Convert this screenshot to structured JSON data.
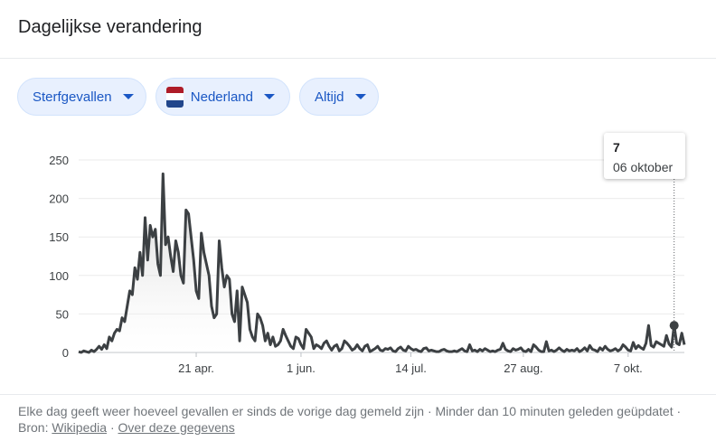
{
  "header": {
    "title": "Dagelijkse verandering"
  },
  "filters": {
    "metric": "Sterfgevallen",
    "region": "Nederland",
    "range": "Altijd"
  },
  "colors": {
    "line": "#3c4043",
    "chip_text": "#1a57c4",
    "chip_bg": "#e8f0fe",
    "flag_red": "#ae1c28",
    "flag_blue": "#21468b"
  },
  "tooltip": {
    "value": "7",
    "date": "06 oktober"
  },
  "footer": {
    "note": "Elke dag geeft weer hoeveel gevallen er sinds de vorige dag gemeld zijn · Minder dan 10 minuten geleden geüpdatet",
    "source_prefix": "Bron:",
    "source_link": "Wikipedia",
    "separator": "·",
    "about_link": "Over deze gegevens"
  },
  "chart_data": {
    "type": "area",
    "title": "",
    "xlabel": "",
    "ylabel": "",
    "ylim": [
      0,
      250
    ],
    "yticks": [
      0,
      50,
      100,
      150,
      200,
      250
    ],
    "x_tick_labels": [
      "21 apr.",
      "1 jun.",
      "14 jul.",
      "27 aug.",
      "7 okt."
    ],
    "x_tick_dates": [
      "2020-04-21",
      "2020-06-01",
      "2020-07-14",
      "2020-08-27",
      "2020-10-07"
    ],
    "grid": true,
    "x_start": "2020-03-06",
    "values": [
      1,
      0,
      2,
      1,
      0,
      3,
      1,
      4,
      8,
      4,
      10,
      5,
      20,
      15,
      25,
      30,
      28,
      45,
      40,
      60,
      80,
      75,
      110,
      95,
      130,
      100,
      175,
      120,
      165,
      150,
      160,
      115,
      100,
      232,
      140,
      150,
      125,
      105,
      145,
      130,
      100,
      90,
      185,
      180,
      150,
      120,
      80,
      70,
      155,
      130,
      115,
      100,
      60,
      45,
      50,
      145,
      110,
      85,
      100,
      95,
      50,
      40,
      80,
      15,
      85,
      75,
      65,
      30,
      20,
      15,
      50,
      45,
      35,
      15,
      25,
      10,
      20,
      8,
      10,
      15,
      30,
      22,
      15,
      8,
      5,
      20,
      18,
      10,
      5,
      30,
      25,
      20,
      5,
      10,
      8,
      5,
      12,
      15,
      8,
      3,
      8,
      10,
      2,
      5,
      15,
      12,
      8,
      3,
      5,
      10,
      5,
      2,
      8,
      10,
      1,
      3,
      5,
      8,
      3,
      2,
      5,
      4,
      6,
      2,
      1,
      5,
      7,
      3,
      2,
      8,
      5,
      3,
      4,
      2,
      1,
      5,
      6,
      2,
      3,
      2,
      1,
      1,
      3,
      4,
      2,
      1,
      1,
      2,
      1,
      3,
      5,
      2,
      1,
      10,
      2,
      3,
      1,
      4,
      2,
      5,
      3,
      1,
      2,
      1,
      3,
      4,
      12,
      4,
      2,
      1,
      5,
      3,
      4,
      6,
      2,
      1,
      4,
      1,
      10,
      7,
      3,
      1,
      1,
      14,
      2,
      3,
      1,
      3,
      6,
      3,
      1,
      4,
      2,
      3,
      2,
      5,
      1,
      3,
      6,
      2,
      9,
      4,
      3,
      1,
      6,
      3,
      8,
      4,
      2,
      3,
      5,
      2,
      4,
      10,
      7,
      3,
      2,
      13,
      5,
      9,
      6,
      4,
      12,
      35,
      9,
      7,
      14,
      12,
      10,
      8,
      22,
      11,
      7,
      35,
      12,
      10,
      25,
      10
    ]
  }
}
